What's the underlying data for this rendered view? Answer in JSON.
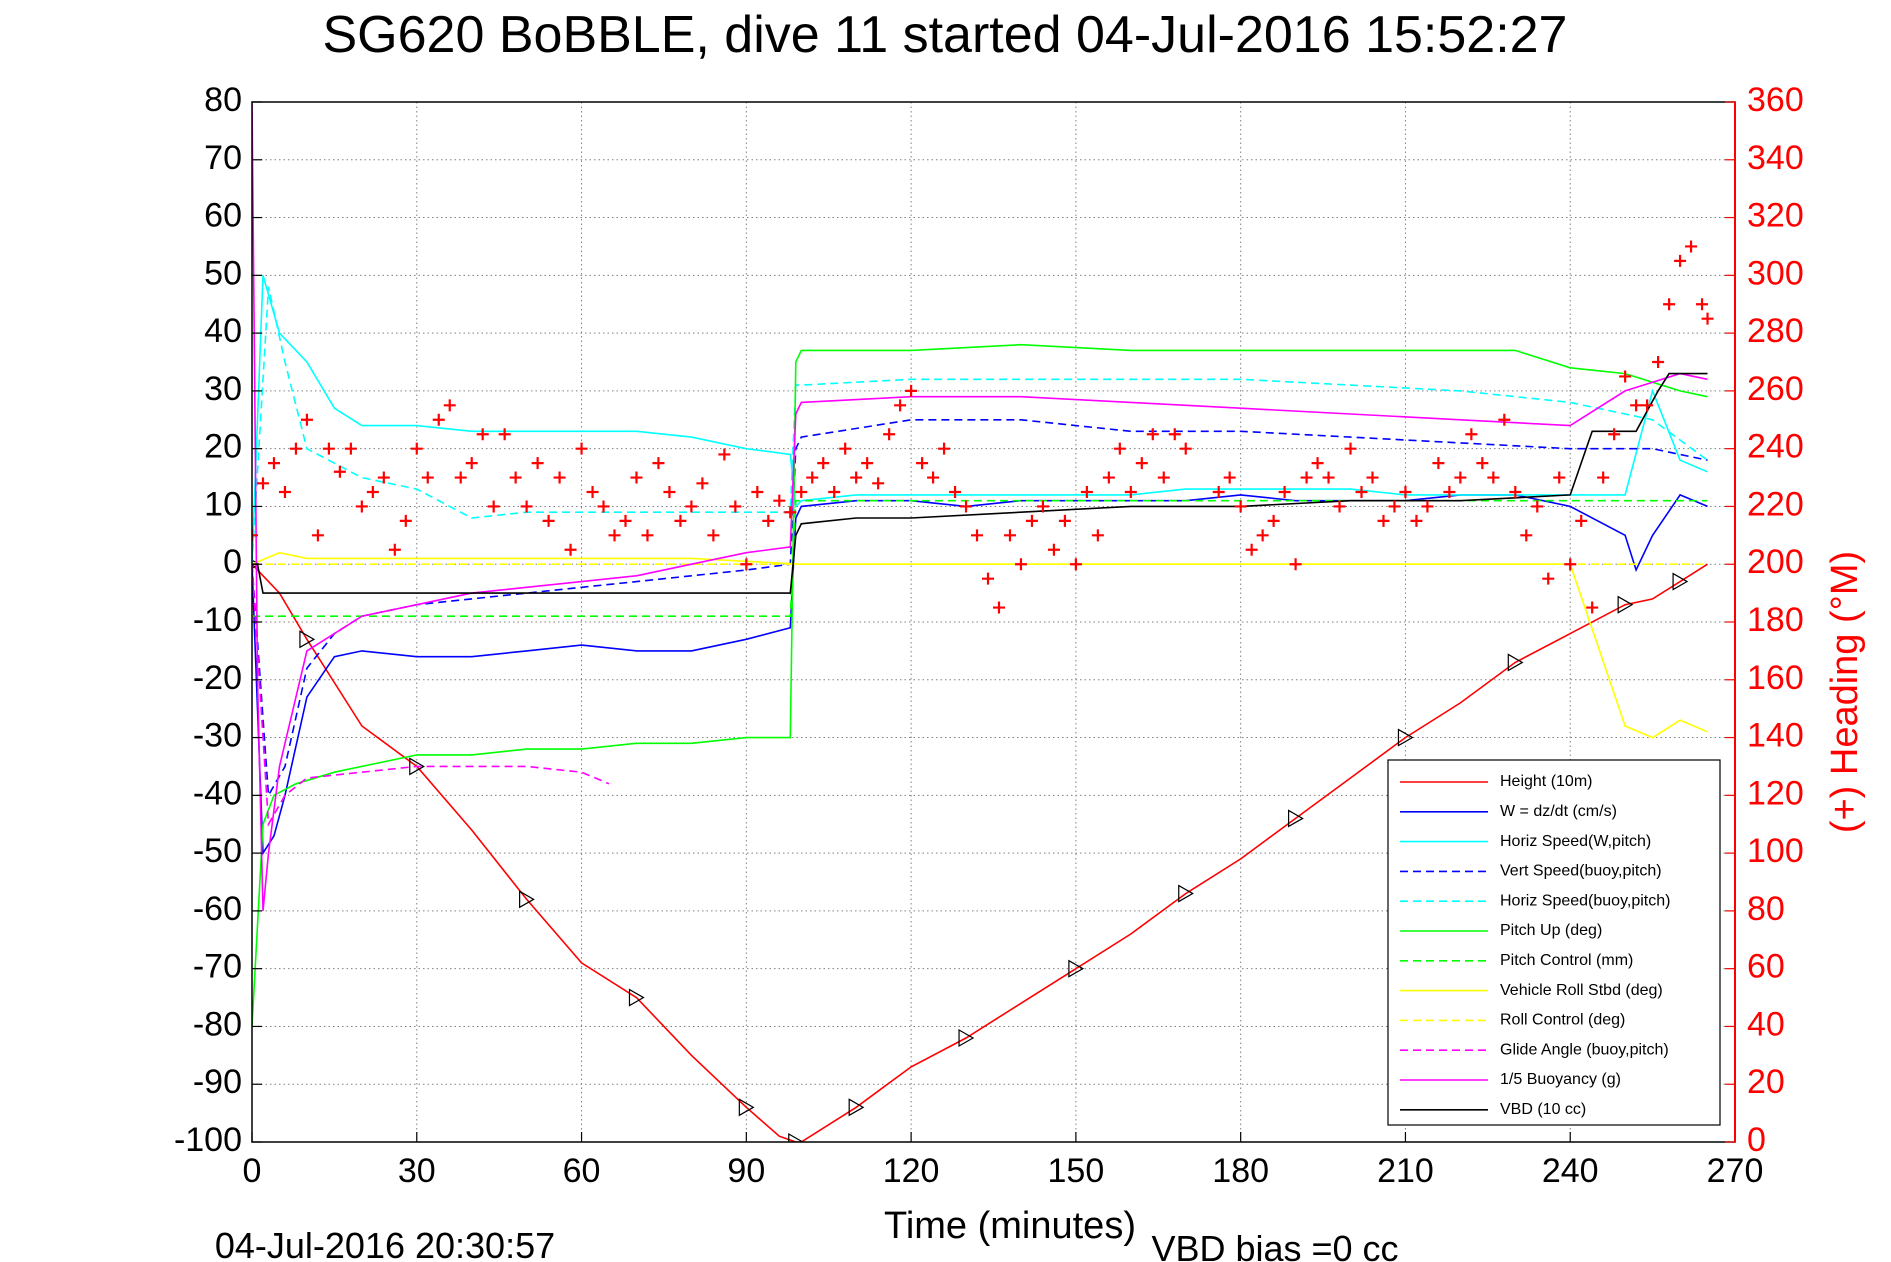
{
  "chart_data": {
    "type": "line",
    "title": "SG620 BoBBLE, dive 11 started 04-Jul-2016 15:52:27",
    "xlabel": "Time (minutes)",
    "ylabel_right": "(+) Heading (°M)",
    "footer_left": "04-Jul-2016 20:30:57",
    "footer_right": "VBD bias =0 cc",
    "xlim": [
      0,
      270
    ],
    "ylim_left": [
      -100,
      80
    ],
    "ylim_right": [
      0,
      360
    ],
    "x_ticks": [
      "0",
      "30",
      "60",
      "90",
      "120",
      "150",
      "180",
      "210",
      "240",
      "270"
    ],
    "y_ticks_left": [
      "80",
      "70",
      "60",
      "50",
      "40",
      "30",
      "20",
      "10",
      "0",
      "-10",
      "-20",
      "-30",
      "-40",
      "-50",
      "-60",
      "-70",
      "-80",
      "-90",
      "-100"
    ],
    "y_ticks_right": [
      "360",
      "340",
      "320",
      "300",
      "280",
      "260",
      "240",
      "220",
      "200",
      "180",
      "160",
      "140",
      "120",
      "100",
      "80",
      "60",
      "40",
      "20",
      "0"
    ],
    "grid": true,
    "legend_position": "lower-right",
    "legend": [
      {
        "name": "Height (10m)",
        "color": "#ff0000",
        "dash": "solid"
      },
      {
        "name": "W = dz/dt (cm/s)",
        "color": "#0000ff",
        "dash": "solid"
      },
      {
        "name": "Horiz Speed(W,pitch)",
        "color": "#00ffff",
        "dash": "solid"
      },
      {
        "name": "Vert Speed(buoy,pitch)",
        "color": "#0000ff",
        "dash": "dashed"
      },
      {
        "name": "Horiz Speed(buoy,pitch)",
        "color": "#00ffff",
        "dash": "dashed"
      },
      {
        "name": "Pitch Up (deg)",
        "color": "#00ff00",
        "dash": "solid"
      },
      {
        "name": "Pitch Control (mm)",
        "color": "#00ff00",
        "dash": "dashed"
      },
      {
        "name": "Vehicle Roll Stbd (deg)",
        "color": "#ffff00",
        "dash": "solid"
      },
      {
        "name": "Roll Control (deg)",
        "color": "#ffff00",
        "dash": "dashed"
      },
      {
        "name": "Glide Angle (buoy,pitch)",
        "color": "#ff00ff",
        "dash": "dashed"
      },
      {
        "name": "1/5 Buoyancy (g)",
        "color": "#ff00ff",
        "dash": "solid"
      },
      {
        "name": "VBD (10 cc)",
        "color": "#000000",
        "dash": "solid"
      }
    ],
    "series": [
      {
        "name": "Height (10m)",
        "axis": "left",
        "color": "#ff0000",
        "dash": "solid",
        "x": [
          0,
          5,
          10,
          20,
          30,
          40,
          50,
          60,
          70,
          80,
          90,
          96,
          99,
          100,
          110,
          120,
          130,
          140,
          150,
          160,
          170,
          180,
          190,
          200,
          210,
          220,
          230,
          240,
          250,
          255,
          260,
          265
        ],
        "y": [
          0,
          -5,
          -13,
          -28,
          -35,
          -46,
          -58,
          -69,
          -75,
          -85,
          -94,
          -99,
          -100,
          -100,
          -94,
          -87,
          -82,
          -76,
          -70,
          -64,
          -57,
          -51,
          -44,
          -37,
          -30,
          -24,
          -17,
          -12,
          -7,
          -6,
          -3,
          0
        ]
      },
      {
        "name": "W = dz/dt (cm/s)",
        "axis": "left",
        "color": "#0000ff",
        "dash": "solid",
        "x": [
          0,
          2,
          4,
          6,
          10,
          15,
          20,
          30,
          40,
          50,
          60,
          70,
          80,
          90,
          98,
          99,
          100,
          110,
          120,
          130,
          140,
          150,
          160,
          170,
          180,
          190,
          200,
          210,
          220,
          230,
          240,
          250,
          252,
          255,
          260,
          265
        ],
        "y": [
          0,
          -50,
          -47,
          -40,
          -23,
          -16,
          -15,
          -16,
          -16,
          -15,
          -14,
          -15,
          -15,
          -13,
          -11,
          8,
          10,
          11,
          11,
          10,
          11,
          11,
          11,
          11,
          12,
          11,
          11,
          11,
          12,
          12,
          10,
          5,
          -1,
          5,
          12,
          10
        ]
      },
      {
        "name": "Horiz Speed(W,pitch)",
        "axis": "left",
        "color": "#00ffff",
        "dash": "solid",
        "x": [
          0,
          2,
          5,
          10,
          15,
          20,
          30,
          40,
          50,
          60,
          70,
          80,
          90,
          98,
          99,
          100,
          110,
          120,
          130,
          140,
          150,
          160,
          170,
          180,
          190,
          200,
          210,
          220,
          230,
          240,
          250,
          255,
          260,
          265
        ],
        "y": [
          0,
          50,
          40,
          35,
          27,
          24,
          24,
          23,
          23,
          23,
          23,
          22,
          20,
          19,
          10,
          11,
          12,
          12,
          12,
          12,
          12,
          12,
          13,
          13,
          13,
          13,
          12,
          12,
          12,
          12,
          12,
          30,
          18,
          16
        ]
      },
      {
        "name": "Vert Speed(buoy,pitch)",
        "axis": "left",
        "color": "#0000ff",
        "dash": "dashed",
        "x": [
          0,
          3,
          6,
          10,
          15,
          20,
          30,
          40,
          50,
          60,
          70,
          80,
          90,
          98,
          99,
          100,
          120,
          140,
          160,
          180,
          200,
          220,
          240,
          255,
          265
        ],
        "y": [
          0,
          -40,
          -35,
          -18,
          -12,
          -9,
          -7,
          -6,
          -5,
          -4,
          -3,
          -2,
          -1,
          0,
          20,
          22,
          25,
          25,
          23,
          23,
          22,
          21,
          20,
          20,
          18
        ]
      },
      {
        "name": "Horiz Speed(buoy,pitch)",
        "axis": "left",
        "color": "#00ffff",
        "dash": "dashed",
        "x": [
          0,
          3,
          6,
          10,
          20,
          30,
          40,
          50,
          60,
          70,
          80,
          90,
          98,
          99,
          100,
          120,
          140,
          160,
          180,
          200,
          220,
          240,
          255,
          265
        ],
        "y": [
          0,
          48,
          35,
          20,
          15,
          13,
          8,
          9,
          9,
          9,
          9,
          9,
          9,
          31,
          31,
          32,
          32,
          32,
          32,
          31,
          30,
          28,
          25,
          18
        ]
      },
      {
        "name": "Pitch Up (deg)",
        "axis": "left",
        "color": "#00ff00",
        "dash": "solid",
        "x": [
          0,
          2,
          4,
          8,
          15,
          20,
          30,
          40,
          50,
          60,
          70,
          80,
          90,
          98,
          99,
          100,
          120,
          140,
          160,
          180,
          200,
          220,
          230,
          240,
          250,
          260,
          265
        ],
        "y": [
          -80,
          -45,
          -40,
          -38,
          -36,
          -35,
          -33,
          -33,
          -32,
          -32,
          -31,
          -31,
          -30,
          -30,
          35,
          37,
          37,
          38,
          37,
          37,
          37,
          37,
          37,
          34,
          33,
          30,
          29
        ]
      },
      {
        "name": "Pitch Control (mm)",
        "axis": "left",
        "color": "#00ff00",
        "dash": "dashed",
        "x": [
          0,
          5,
          10,
          98,
          99,
          100,
          265
        ],
        "y": [
          -9,
          -9,
          -9,
          -9,
          11,
          11,
          11
        ]
      },
      {
        "name": "Vehicle Roll Stbd (deg)",
        "axis": "left",
        "color": "#ffff00",
        "dash": "solid",
        "x": [
          0,
          5,
          10,
          20,
          40,
          60,
          80,
          100,
          120,
          140,
          160,
          180,
          200,
          220,
          240,
          250,
          255,
          260,
          265
        ],
        "y": [
          0,
          2,
          1,
          1,
          1,
          1,
          1,
          0,
          0,
          0,
          0,
          0,
          0,
          0,
          0,
          -28,
          -30,
          -27,
          -29
        ]
      },
      {
        "name": "Roll Control (deg)",
        "axis": "left",
        "color": "#ffff00",
        "dash": "dashed",
        "x": [
          0,
          100,
          265
        ],
        "y": [
          0,
          0,
          0
        ]
      },
      {
        "name": "Glide Angle (buoy,pitch)",
        "axis": "left",
        "color": "#ff00ff",
        "dash": "dashed",
        "x": [
          0,
          3,
          6,
          10,
          20,
          30,
          40,
          50,
          60,
          65
        ],
        "y": [
          0,
          -45,
          -40,
          -37,
          -36,
          -35,
          -35,
          -35,
          -36,
          -38
        ]
      },
      {
        "name": "1/5 Buoyancy (g)",
        "axis": "left",
        "color": "#ff00ff",
        "dash": "solid",
        "x": [
          0,
          1,
          2,
          3,
          5,
          10,
          20,
          30,
          40,
          50,
          60,
          70,
          80,
          90,
          98,
          99,
          100,
          120,
          140,
          160,
          180,
          200,
          220,
          240,
          250,
          260,
          265
        ],
        "y": [
          80,
          -20,
          -60,
          -50,
          -35,
          -15,
          -9,
          -7,
          -5,
          -4,
          -3,
          -2,
          0,
          2,
          3,
          26,
          28,
          29,
          29,
          28,
          27,
          26,
          25,
          24,
          30,
          33,
          32
        ]
      },
      {
        "name": "VBD (10 cc)",
        "axis": "left",
        "color": "#000000",
        "dash": "solid",
        "x": [
          0,
          1,
          2,
          5,
          10,
          98,
          99,
          100,
          110,
          120,
          140,
          160,
          180,
          200,
          220,
          240,
          244,
          250,
          252,
          256,
          258,
          265
        ],
        "y": [
          0,
          0,
          -5,
          -5,
          -5,
          -5,
          5,
          7,
          8,
          8,
          9,
          10,
          10,
          11,
          11,
          12,
          23,
          23,
          23,
          30,
          33,
          33
        ]
      },
      {
        "name": "Heading",
        "axis": "right",
        "color": "#ff0000",
        "marker": "+",
        "x": [
          0,
          2,
          4,
          6,
          8,
          10,
          12,
          14,
          16,
          18,
          20,
          22,
          24,
          26,
          28,
          30,
          32,
          34,
          36,
          38,
          40,
          42,
          44,
          46,
          48,
          50,
          52,
          54,
          56,
          58,
          60,
          62,
          64,
          66,
          68,
          70,
          72,
          74,
          76,
          78,
          80,
          82,
          84,
          86,
          88,
          90,
          92,
          94,
          96,
          98,
          100,
          102,
          104,
          106,
          108,
          110,
          112,
          114,
          116,
          118,
          120,
          122,
          124,
          126,
          128,
          130,
          132,
          134,
          136,
          138,
          140,
          142,
          144,
          146,
          148,
          150,
          152,
          154,
          156,
          158,
          160,
          162,
          164,
          166,
          168,
          170,
          176,
          178,
          180,
          182,
          184,
          186,
          188,
          190,
          192,
          194,
          196,
          198,
          200,
          202,
          204,
          206,
          208,
          210,
          212,
          214,
          216,
          218,
          220,
          222,
          224,
          226,
          228,
          230,
          232,
          234,
          236,
          238,
          240,
          242,
          244,
          246,
          248,
          250,
          252,
          254,
          256,
          258,
          260,
          262,
          264,
          265
        ],
        "y": [
          210,
          228,
          235,
          225,
          240,
          250,
          210,
          240,
          232,
          240,
          220,
          225,
          230,
          205,
          215,
          240,
          230,
          250,
          255,
          230,
          235,
          245,
          220,
          245,
          230,
          220,
          235,
          215,
          230,
          205,
          240,
          225,
          220,
          210,
          215,
          230,
          210,
          235,
          225,
          215,
          220,
          228,
          210,
          238,
          220,
          200,
          225,
          215,
          222,
          218,
          225,
          230,
          235,
          225,
          240,
          230,
          235,
          228,
          245,
          255,
          260,
          235,
          230,
          240,
          225,
          220,
          210,
          195,
          185,
          210,
          200,
          215,
          220,
          205,
          215,
          200,
          225,
          210,
          230,
          240,
          225,
          235,
          245,
          230,
          245,
          240,
          225,
          230,
          220,
          205,
          210,
          215,
          225,
          200,
          230,
          235,
          230,
          220,
          240,
          225,
          230,
          215,
          220,
          225,
          215,
          220,
          235,
          225,
          230,
          245,
          235,
          230,
          250,
          225,
          210,
          220,
          195,
          230,
          200,
          215,
          185,
          230,
          245,
          265,
          255,
          255,
          270,
          290,
          305,
          310,
          290,
          285
        ]
      }
    ]
  }
}
